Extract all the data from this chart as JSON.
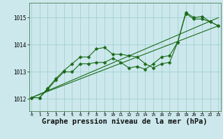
{
  "background_color": "#cce8ec",
  "grid_color": "#99cccc",
  "line_color": "#1a6b1a",
  "marker_color": "#1a6b1a",
  "xlabel": "Graphe pression niveau de la mer (hPa)",
  "xlabel_fontsize": 7.5,
  "yticks": [
    1012,
    1013,
    1014,
    1015
  ],
  "xticks": [
    0,
    1,
    2,
    3,
    4,
    5,
    6,
    7,
    8,
    9,
    10,
    11,
    12,
    13,
    14,
    15,
    16,
    17,
    18,
    19,
    20,
    21,
    22,
    23
  ],
  "xlim": [
    -0.3,
    23.3
  ],
  "ylim": [
    1011.55,
    1015.55
  ],
  "series1_x": [
    0,
    1,
    2,
    3,
    4,
    5,
    6,
    7,
    8,
    9,
    10,
    11,
    12,
    13,
    14,
    15,
    16,
    17,
    18,
    19,
    20,
    21,
    22,
    23
  ],
  "series1_y": [
    1012.05,
    1012.05,
    1012.4,
    1012.75,
    1013.05,
    1013.3,
    1013.55,
    1013.55,
    1013.85,
    1013.9,
    1013.65,
    1013.65,
    1013.6,
    1013.55,
    1013.3,
    1013.15,
    1013.3,
    1013.35,
    1014.1,
    1015.2,
    1015.0,
    1015.05,
    1014.85,
    1014.7
  ],
  "series2_x": [
    0,
    1,
    2,
    3,
    4,
    5,
    6,
    7,
    8,
    9,
    10,
    11,
    12,
    13,
    14,
    15,
    16,
    17,
    18,
    19,
    20,
    21,
    22,
    23
  ],
  "series2_y": [
    1012.05,
    1012.05,
    1012.35,
    1012.7,
    1013.0,
    1013.0,
    1013.3,
    1013.3,
    1013.35,
    1013.35,
    1013.5,
    1013.35,
    1013.15,
    1013.2,
    1013.1,
    1013.3,
    1013.55,
    1013.6,
    1014.1,
    1015.15,
    1014.95,
    1014.95,
    1014.85,
    1014.7
  ],
  "trend1_x": [
    0,
    23
  ],
  "trend1_y": [
    1012.05,
    1015.0
  ],
  "trend2_x": [
    0,
    23
  ],
  "trend2_y": [
    1012.05,
    1014.7
  ]
}
